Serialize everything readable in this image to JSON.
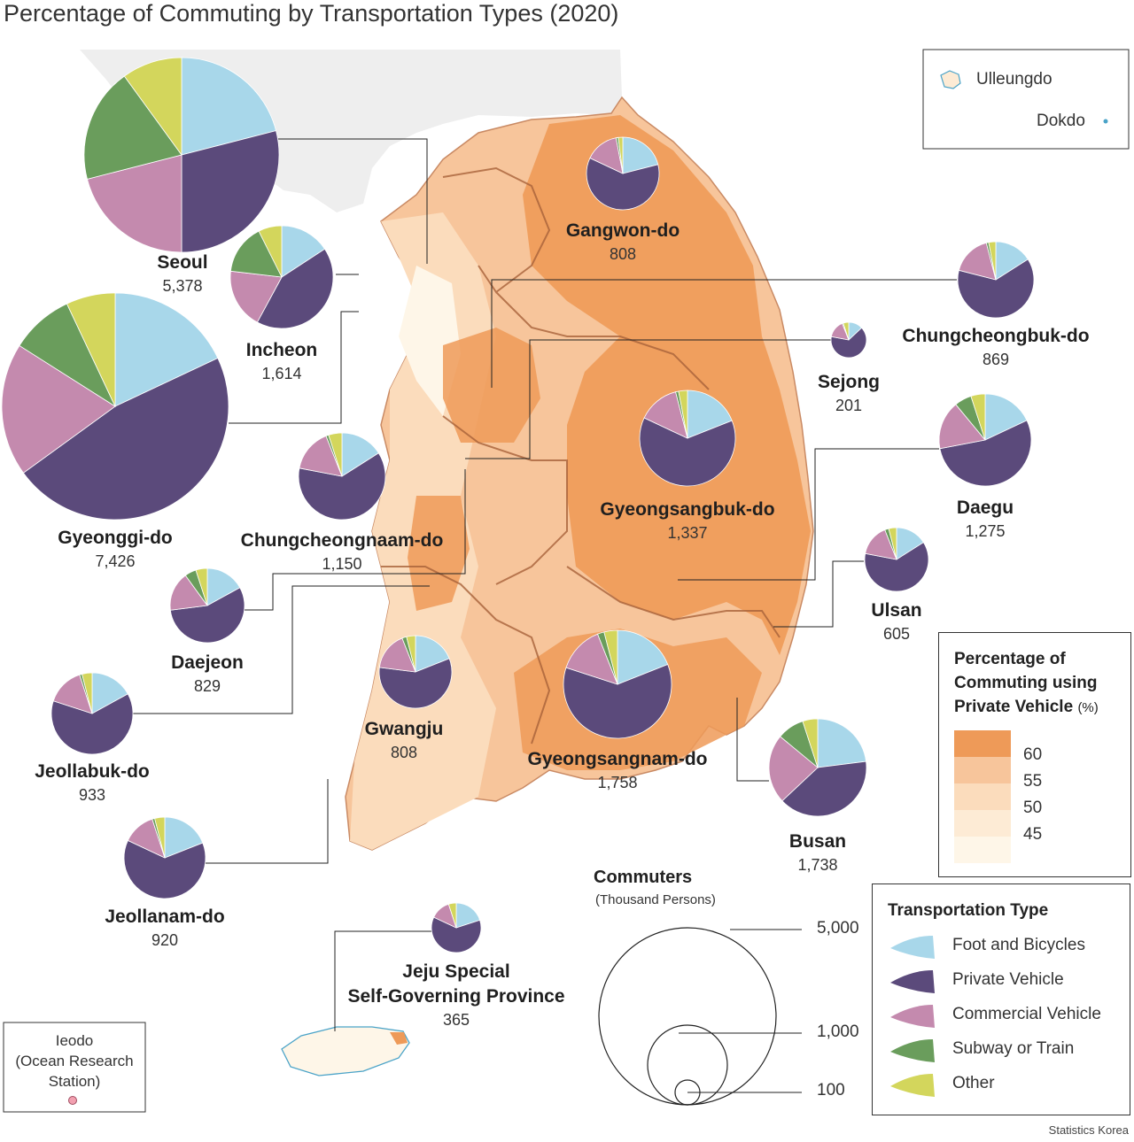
{
  "title": "Percentage of Commuting by Transportation Types (2020)",
  "source": "Statistics Korea",
  "inset": {
    "ulleungdo": "Ulleungdo",
    "dokdo": "Dokdo"
  },
  "ieodo": {
    "line1": "Ieodo",
    "line2": "(Ocean Research",
    "line3": "Station)"
  },
  "vehicle_legend": {
    "title1": "Percentage of",
    "title2": "Commuting using",
    "title3": "Private Vehicle",
    "unit": "(%)",
    "classes": [
      {
        "label": "60",
        "color": "#ee9a58"
      },
      {
        "label": "55",
        "color": "#f7c59b"
      },
      {
        "label": "50",
        "color": "#fbdcbc"
      },
      {
        "label": "45",
        "color": "#fdebd5"
      },
      {
        "label": "",
        "color": "#fef6e8"
      }
    ]
  },
  "size_legend": {
    "title": "Commuters",
    "subtitle": "(Thousand Persons)",
    "values": [
      "5,000",
      "1,000",
      "100"
    ]
  },
  "type_legend": {
    "title": "Transportation Type",
    "items": [
      {
        "label": "Foot and Bicycles",
        "color": "#a8d7ea"
      },
      {
        "label": "Private Vehicle",
        "color": "#5b4a7b"
      },
      {
        "label": "Commercial Vehicle",
        "color": "#c48aae"
      },
      {
        "label": "Subway or Train",
        "color": "#6a9d5c"
      },
      {
        "label": "Other",
        "color": "#d3d65c"
      }
    ]
  },
  "chart_data": {
    "type": "pie",
    "title": "Percentage of Commuting by Transportation Types (2020)",
    "series_order": [
      "Foot and Bicycles",
      "Private Vehicle",
      "Commercial Vehicle",
      "Subway or Train",
      "Other"
    ],
    "unit": "thousand persons",
    "regions": [
      {
        "name": "Seoul",
        "commuters": "5,378",
        "value": 5378,
        "shares": [
          21,
          29,
          21,
          19,
          10
        ]
      },
      {
        "name": "Incheon",
        "commuters": "1,614",
        "value": 1614,
        "shares": [
          15,
          40,
          18,
          15,
          7
        ]
      },
      {
        "name": "Gyeonggi-do",
        "commuters": "7,426",
        "value": 7426,
        "shares": [
          18,
          47,
          19,
          9,
          7
        ]
      },
      {
        "name": "Gangwon-do",
        "commuters": "808",
        "value": 808,
        "shares": [
          21,
          61,
          15,
          1,
          2
        ]
      },
      {
        "name": "Chungcheongbuk-do",
        "commuters": "869",
        "value": 869,
        "shares": [
          16,
          63,
          17,
          1,
          3
        ]
      },
      {
        "name": "Sejong",
        "commuters": "201",
        "value": 201,
        "shares": [
          13,
          65,
          16,
          1,
          5
        ]
      },
      {
        "name": "Chungcheongnaam-do",
        "commuters": "1,150",
        "value": 1150,
        "shares": [
          16,
          62,
          16,
          1,
          5
        ]
      },
      {
        "name": "Daejeon",
        "commuters": "829",
        "value": 829,
        "shares": [
          17,
          56,
          17,
          5,
          5
        ]
      },
      {
        "name": "Gyeongsangbuk-do",
        "commuters": "1,337",
        "value": 1337,
        "shares": [
          19,
          63,
          14,
          1,
          3
        ]
      },
      {
        "name": "Daegu",
        "commuters": "1,275",
        "value": 1275,
        "shares": [
          18,
          54,
          17,
          6,
          5
        ]
      },
      {
        "name": "Ulsan",
        "commuters": "605",
        "value": 605,
        "shares": [
          16,
          62,
          16,
          2,
          4
        ]
      },
      {
        "name": "Jeollabuk-do",
        "commuters": "933",
        "value": 933,
        "shares": [
          17,
          63,
          15,
          1,
          4
        ]
      },
      {
        "name": "Gwangju",
        "commuters": "808",
        "value": 808,
        "shares": [
          19,
          58,
          17,
          2,
          4
        ]
      },
      {
        "name": "Gyeongsangnam-do",
        "commuters": "1,758",
        "value": 1758,
        "shares": [
          19,
          61,
          14,
          2,
          4
        ]
      },
      {
        "name": "Busan",
        "commuters": "1,738",
        "value": 1738,
        "shares": [
          23,
          40,
          23,
          9,
          5
        ]
      },
      {
        "name": "Jeollanam-do",
        "commuters": "920",
        "value": 920,
        "shares": [
          19,
          63,
          13,
          1,
          4
        ]
      },
      {
        "name": "Jeju Special Self-Governing Province",
        "commuters": "365",
        "value": 365,
        "shares": [
          20,
          62,
          13,
          0,
          5
        ]
      }
    ]
  }
}
